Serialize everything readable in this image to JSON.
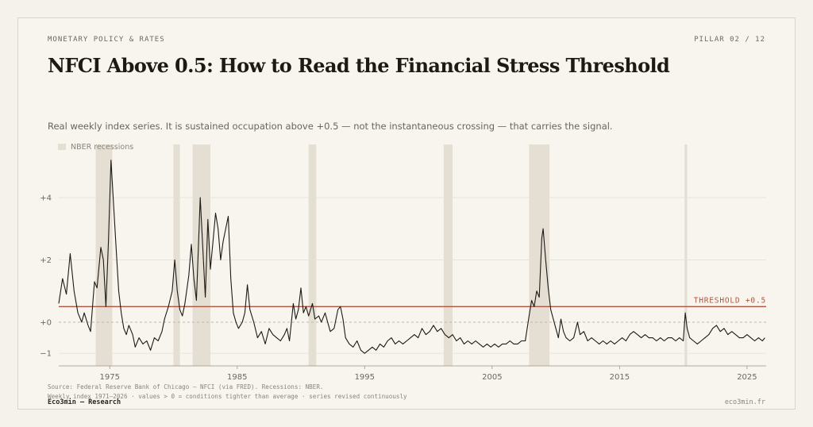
{
  "header": {
    "eyebrow": "MONETARY POLICY & RATES",
    "pillar": "PILLAR 02 / 12",
    "title": "NFCI Above 0.5: How to Read the Financial Stress Threshold",
    "subtitle": "Real weekly index series. It is sustained occupation above +0.5 — not the instantaneous crossing — that carries the signal."
  },
  "footer": {
    "source_line1": "Source: Federal Reserve Bank of Chicago — NFCI (via FRED). Recessions: NBER.",
    "source_line2": "Weekly index 1971–2026 · values > 0 = conditions tighter than average · series revised continuously",
    "brand": "Eco3min — Research",
    "site": "eco3min.fr"
  },
  "chart_data": {
    "type": "line",
    "title": "",
    "xlabel": "",
    "ylabel": "",
    "xlim": [
      1971,
      2026.5
    ],
    "ylim": [
      -1.25,
      5.4
    ],
    "x_ticks": [
      1975,
      1985,
      1995,
      2005,
      2015,
      2025
    ],
    "x_tick_labels": [
      "1975",
      "1985",
      "1995",
      "2005",
      "2015",
      "2025"
    ],
    "y_ticks": [
      -1,
      0,
      2,
      4
    ],
    "y_tick_labels": [
      "−1",
      "+0",
      "+2",
      "+4"
    ],
    "grid": true,
    "legend": {
      "position": "top-left",
      "entries": [
        "NBER recessions"
      ]
    },
    "colors": {
      "line": "#1d1a16",
      "threshold": "#b4533e",
      "recession": "#e4ded3",
      "grid": "#e6e1d8"
    },
    "threshold": {
      "value": 0.5,
      "label": "THRESHOLD +0.5"
    },
    "recessions": [
      {
        "start": 1973.9,
        "end": 1975.2
      },
      {
        "start": 1980.0,
        "end": 1980.5
      },
      {
        "start": 1981.5,
        "end": 1982.9
      },
      {
        "start": 1990.6,
        "end": 1991.2
      },
      {
        "start": 2001.2,
        "end": 2001.9
      },
      {
        "start": 2007.9,
        "end": 2009.5
      },
      {
        "start": 2020.1,
        "end": 2020.3
      }
    ],
    "series": [
      {
        "values": [
          [
            1971.0,
            0.6
          ],
          [
            1971.3,
            1.4
          ],
          [
            1971.6,
            0.9
          ],
          [
            1971.9,
            2.2
          ],
          [
            1972.2,
            1.0
          ],
          [
            1972.5,
            0.3
          ],
          [
            1972.8,
            0.0
          ],
          [
            1973.0,
            0.3
          ],
          [
            1973.3,
            -0.1
          ],
          [
            1973.5,
            -0.3
          ],
          [
            1973.8,
            1.3
          ],
          [
            1974.0,
            1.1
          ],
          [
            1974.3,
            2.4
          ],
          [
            1974.5,
            2.0
          ],
          [
            1974.7,
            0.5
          ],
          [
            1974.9,
            2.6
          ],
          [
            1975.1,
            5.2
          ],
          [
            1975.3,
            3.8
          ],
          [
            1975.5,
            2.4
          ],
          [
            1975.7,
            1.0
          ],
          [
            1975.9,
            0.3
          ],
          [
            1976.1,
            -0.2
          ],
          [
            1976.3,
            -0.4
          ],
          [
            1976.5,
            -0.1
          ],
          [
            1976.8,
            -0.4
          ],
          [
            1977.0,
            -0.8
          ],
          [
            1977.3,
            -0.5
          ],
          [
            1977.6,
            -0.7
          ],
          [
            1977.9,
            -0.6
          ],
          [
            1978.2,
            -0.9
          ],
          [
            1978.5,
            -0.5
          ],
          [
            1978.8,
            -0.6
          ],
          [
            1979.1,
            -0.3
          ],
          [
            1979.3,
            0.1
          ],
          [
            1979.6,
            0.5
          ],
          [
            1979.9,
            1.0
          ],
          [
            1980.1,
            2.0
          ],
          [
            1980.3,
            1.0
          ],
          [
            1980.5,
            0.4
          ],
          [
            1980.7,
            0.2
          ],
          [
            1980.9,
            0.6
          ],
          [
            1981.2,
            1.5
          ],
          [
            1981.4,
            2.5
          ],
          [
            1981.6,
            1.4
          ],
          [
            1981.8,
            0.7
          ],
          [
            1982.1,
            4.0
          ],
          [
            1982.3,
            2.4
          ],
          [
            1982.5,
            0.8
          ],
          [
            1982.7,
            3.3
          ],
          [
            1982.9,
            1.7
          ],
          [
            1983.1,
            2.6
          ],
          [
            1983.3,
            3.5
          ],
          [
            1983.5,
            3.0
          ],
          [
            1983.7,
            2.0
          ],
          [
            1983.9,
            2.6
          ],
          [
            1984.1,
            3.0
          ],
          [
            1984.3,
            3.4
          ],
          [
            1984.5,
            1.4
          ],
          [
            1984.7,
            0.3
          ],
          [
            1984.9,
            0.0
          ],
          [
            1985.1,
            -0.2
          ],
          [
            1985.4,
            0.0
          ],
          [
            1985.6,
            0.3
          ],
          [
            1985.8,
            1.2
          ],
          [
            1986.0,
            0.4
          ],
          [
            1986.3,
            0.0
          ],
          [
            1986.6,
            -0.5
          ],
          [
            1986.9,
            -0.3
          ],
          [
            1987.2,
            -0.7
          ],
          [
            1987.5,
            -0.2
          ],
          [
            1987.8,
            -0.4
          ],
          [
            1988.1,
            -0.5
          ],
          [
            1988.4,
            -0.6
          ],
          [
            1988.7,
            -0.4
          ],
          [
            1988.9,
            -0.2
          ],
          [
            1989.1,
            -0.6
          ],
          [
            1989.4,
            0.6
          ],
          [
            1989.6,
            0.1
          ],
          [
            1989.8,
            0.4
          ],
          [
            1990.0,
            1.1
          ],
          [
            1990.2,
            0.3
          ],
          [
            1990.4,
            0.5
          ],
          [
            1990.6,
            0.2
          ],
          [
            1990.9,
            0.6
          ],
          [
            1991.1,
            0.1
          ],
          [
            1991.4,
            0.2
          ],
          [
            1991.6,
            0.0
          ],
          [
            1991.9,
            0.3
          ],
          [
            1992.1,
            0.0
          ],
          [
            1992.3,
            -0.3
          ],
          [
            1992.6,
            -0.2
          ],
          [
            1992.9,
            0.4
          ],
          [
            1993.1,
            0.5
          ],
          [
            1993.3,
            0.1
          ],
          [
            1993.5,
            -0.5
          ],
          [
            1993.8,
            -0.7
          ],
          [
            1994.1,
            -0.8
          ],
          [
            1994.4,
            -0.6
          ],
          [
            1994.7,
            -0.9
          ],
          [
            1995.0,
            -1.0
          ],
          [
            1995.3,
            -0.9
          ],
          [
            1995.6,
            -0.8
          ],
          [
            1995.9,
            -0.9
          ],
          [
            1996.2,
            -0.7
          ],
          [
            1996.5,
            -0.8
          ],
          [
            1996.8,
            -0.6
          ],
          [
            1997.1,
            -0.5
          ],
          [
            1997.4,
            -0.7
          ],
          [
            1997.7,
            -0.6
          ],
          [
            1998.0,
            -0.7
          ],
          [
            1998.3,
            -0.6
          ],
          [
            1998.6,
            -0.5
          ],
          [
            1998.9,
            -0.4
          ],
          [
            1999.2,
            -0.5
          ],
          [
            1999.5,
            -0.2
          ],
          [
            1999.8,
            -0.4
          ],
          [
            2000.1,
            -0.3
          ],
          [
            2000.4,
            -0.1
          ],
          [
            2000.7,
            -0.3
          ],
          [
            2001.0,
            -0.2
          ],
          [
            2001.3,
            -0.4
          ],
          [
            2001.6,
            -0.5
          ],
          [
            2001.9,
            -0.4
          ],
          [
            2002.2,
            -0.6
          ],
          [
            2002.5,
            -0.5
          ],
          [
            2002.8,
            -0.7
          ],
          [
            2003.1,
            -0.6
          ],
          [
            2003.4,
            -0.7
          ],
          [
            2003.7,
            -0.6
          ],
          [
            2004.0,
            -0.7
          ],
          [
            2004.3,
            -0.8
          ],
          [
            2004.6,
            -0.7
          ],
          [
            2004.9,
            -0.8
          ],
          [
            2005.2,
            -0.7
          ],
          [
            2005.5,
            -0.8
          ],
          [
            2005.8,
            -0.7
          ],
          [
            2006.1,
            -0.7
          ],
          [
            2006.4,
            -0.6
          ],
          [
            2006.7,
            -0.7
          ],
          [
            2007.0,
            -0.7
          ],
          [
            2007.3,
            -0.6
          ],
          [
            2007.6,
            -0.6
          ],
          [
            2007.9,
            0.2
          ],
          [
            2008.1,
            0.7
          ],
          [
            2008.3,
            0.5
          ],
          [
            2008.5,
            1.0
          ],
          [
            2008.7,
            0.8
          ],
          [
            2008.9,
            2.7
          ],
          [
            2009.0,
            3.0
          ],
          [
            2009.2,
            2.0
          ],
          [
            2009.4,
            1.1
          ],
          [
            2009.6,
            0.4
          ],
          [
            2009.8,
            0.1
          ],
          [
            2010.0,
            -0.2
          ],
          [
            2010.2,
            -0.5
          ],
          [
            2010.4,
            0.1
          ],
          [
            2010.6,
            -0.3
          ],
          [
            2010.8,
            -0.5
          ],
          [
            2011.1,
            -0.6
          ],
          [
            2011.4,
            -0.5
          ],
          [
            2011.7,
            0.0
          ],
          [
            2011.9,
            -0.4
          ],
          [
            2012.2,
            -0.3
          ],
          [
            2012.5,
            -0.6
          ],
          [
            2012.8,
            -0.5
          ],
          [
            2013.1,
            -0.6
          ],
          [
            2013.4,
            -0.7
          ],
          [
            2013.7,
            -0.6
          ],
          [
            2014.0,
            -0.7
          ],
          [
            2014.3,
            -0.6
          ],
          [
            2014.6,
            -0.7
          ],
          [
            2014.9,
            -0.6
          ],
          [
            2015.2,
            -0.5
          ],
          [
            2015.5,
            -0.6
          ],
          [
            2015.8,
            -0.4
          ],
          [
            2016.1,
            -0.3
          ],
          [
            2016.4,
            -0.4
          ],
          [
            2016.7,
            -0.5
          ],
          [
            2017.0,
            -0.4
          ],
          [
            2017.3,
            -0.5
          ],
          [
            2017.6,
            -0.5
          ],
          [
            2017.9,
            -0.6
          ],
          [
            2018.2,
            -0.5
          ],
          [
            2018.5,
            -0.6
          ],
          [
            2018.8,
            -0.5
          ],
          [
            2019.1,
            -0.5
          ],
          [
            2019.4,
            -0.6
          ],
          [
            2019.7,
            -0.5
          ],
          [
            2020.0,
            -0.6
          ],
          [
            2020.15,
            0.3
          ],
          [
            2020.3,
            -0.2
          ],
          [
            2020.5,
            -0.5
          ],
          [
            2020.8,
            -0.6
          ],
          [
            2021.1,
            -0.7
          ],
          [
            2021.4,
            -0.6
          ],
          [
            2021.7,
            -0.5
          ],
          [
            2022.0,
            -0.4
          ],
          [
            2022.3,
            -0.2
          ],
          [
            2022.6,
            -0.1
          ],
          [
            2022.9,
            -0.3
          ],
          [
            2023.2,
            -0.2
          ],
          [
            2023.5,
            -0.4
          ],
          [
            2023.8,
            -0.3
          ],
          [
            2024.1,
            -0.4
          ],
          [
            2024.4,
            -0.5
          ],
          [
            2024.7,
            -0.5
          ],
          [
            2025.0,
            -0.4
          ],
          [
            2025.3,
            -0.5
          ],
          [
            2025.6,
            -0.6
          ],
          [
            2025.9,
            -0.5
          ],
          [
            2026.2,
            -0.6
          ],
          [
            2026.4,
            -0.5
          ]
        ]
      }
    ]
  }
}
